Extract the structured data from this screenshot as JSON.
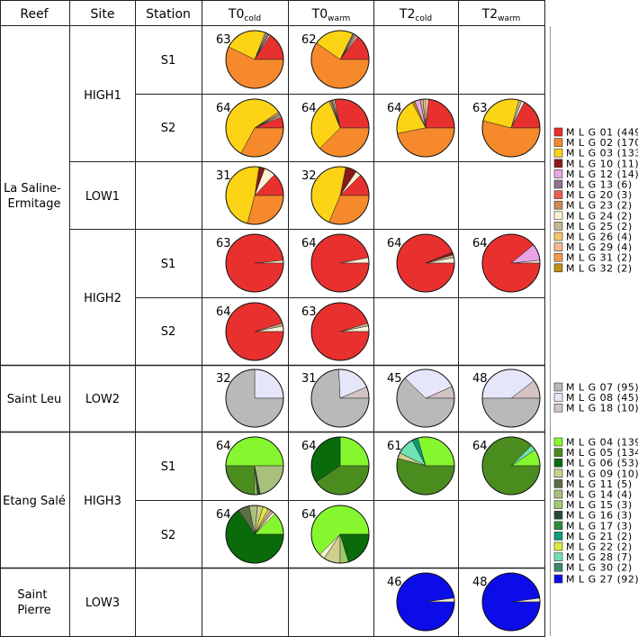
{
  "headers": {
    "reef": "Reef",
    "site": "Site",
    "station": "Station",
    "t0_cold_main": "T0",
    "t0_cold_sub": "cold",
    "t0_warm_main": "T0",
    "t0_warm_sub": "warm",
    "t2_cold_main": "T2",
    "t2_cold_sub": "cold",
    "t2_warm_main": "T2",
    "t2_warm_sub": "warm"
  },
  "reefs": [
    {
      "line1": "La Saline-",
      "line2": "Ermitage"
    },
    {
      "line1": "Saint Leu",
      "line2": ""
    },
    {
      "line1": "Etang Salé",
      "line2": ""
    },
    {
      "line1": "Saint",
      "line2": "Pierre"
    }
  ],
  "sites": [
    "HIGH1",
    "LOW1",
    "HIGH2",
    "LOW2",
    "HIGH3",
    "LOW3"
  ],
  "stations": [
    "S1",
    "S2",
    "S1",
    "S2",
    "S1",
    "S2"
  ],
  "colors": {
    "MLG01": "#e8312e",
    "MLG02": "#f5892c",
    "MLG03": "#fdd415",
    "MLG10": "#8b1a1a",
    "MLG12": "#e7a3e3",
    "MLG13": "#8e7494",
    "MLG20": "#ef5c4f",
    "MLG23": "#cf8a56",
    "MLG24": "#fbf2d4",
    "MLG25": "#c7b597",
    "MLG26": "#f7c46b",
    "MLG29": "#f4b990",
    "MLG31": "#f39a4c",
    "MLG32": "#be8d16",
    "MLG07": "#b9b9b9",
    "MLG08": "#e6e6fa",
    "MLG18": "#d3c3c3",
    "MLG04": "#86f72e",
    "MLG05": "#4b8c1e",
    "MLG06": "#0a6b0a",
    "MLG09": "#cfcf8c",
    "MLG11": "#5c6e46",
    "MLG14": "#a9bf7c",
    "MLG15": "#9ecb6a",
    "MLG16": "#274a36",
    "MLG17": "#2e8b3c",
    "MLG21": "#0c9a7a",
    "MLG22": "#dde93a",
    "MLG28": "#6ee3b4",
    "MLG30": "#3a8a6a",
    "MLG27": "#0c0ce8"
  },
  "legends": [
    {
      "items": [
        {
          "id": "MLG01",
          "label": "M L G 01 (449)"
        },
        {
          "id": "MLG02",
          "label": "M L G 02 (170)"
        },
        {
          "id": "MLG03",
          "label": "M L G 03 (133)"
        },
        {
          "id": "MLG10",
          "label": "M L G 10 (11)"
        },
        {
          "id": "MLG12",
          "label": "M L G 12 (14)"
        },
        {
          "id": "MLG13",
          "label": "M L G 13 (6)"
        },
        {
          "id": "MLG20",
          "label": "M L G 20 (3)"
        },
        {
          "id": "MLG23",
          "label": "M L G 23 (2)"
        },
        {
          "id": "MLG24",
          "label": "M L G 24 (2)"
        },
        {
          "id": "MLG25",
          "label": "M L G 25 (2)"
        },
        {
          "id": "MLG26",
          "label": "M L G 26 (4)"
        },
        {
          "id": "MLG29",
          "label": "M L G 29 (4)"
        },
        {
          "id": "MLG31",
          "label": "M L G 31 (2)"
        },
        {
          "id": "MLG32",
          "label": "M L G 32 (2)"
        }
      ]
    },
    {
      "items": [
        {
          "id": "MLG07",
          "label": "M L G 07 (95)"
        },
        {
          "id": "MLG08",
          "label": "M L G 08 (45)"
        },
        {
          "id": "MLG18",
          "label": "M L G 18 (10)"
        }
      ]
    },
    {
      "items": [
        {
          "id": "MLG04",
          "label": "M L G 04 (139)"
        },
        {
          "id": "MLG05",
          "label": "M L G 05 (134)"
        },
        {
          "id": "MLG06",
          "label": "M L G 06 (53)"
        },
        {
          "id": "MLG09",
          "label": "M L G 09 (10)"
        },
        {
          "id": "MLG11",
          "label": "M L G 11 (5)"
        },
        {
          "id": "MLG14",
          "label": "M L G 14 (4)"
        },
        {
          "id": "MLG15",
          "label": "M L G 15 (3)"
        },
        {
          "id": "MLG16",
          "label": "M L G 16 (3)"
        },
        {
          "id": "MLG17",
          "label": "M L G 17 (3)"
        },
        {
          "id": "MLG21",
          "label": "M L G 21 (2)"
        },
        {
          "id": "MLG22",
          "label": "M L G 22 (2)"
        },
        {
          "id": "MLG28",
          "label": "M L G 28 (7)"
        },
        {
          "id": "MLG30",
          "label": "M L G 30 (2)"
        }
      ]
    },
    {
      "items": [
        {
          "id": "MLG27",
          "label": "M L G 27 (92)"
        }
      ]
    }
  ],
  "pies": [
    {
      "row": 0,
      "col": 0,
      "n": "63",
      "slices": [
        [
          "MLG01",
          10
        ],
        [
          "MLG24",
          0.5
        ],
        [
          "MLG13",
          0.5
        ],
        [
          "MLG29",
          0.5
        ],
        [
          "MLG25",
          0.5
        ],
        [
          "MLG03",
          15
        ],
        [
          "MLG02",
          36
        ]
      ]
    },
    {
      "row": 0,
      "col": 1,
      "n": "62",
      "slices": [
        [
          "MLG01",
          9
        ],
        [
          "MLG24",
          0.5
        ],
        [
          "MLG29",
          0.5
        ],
        [
          "MLG25",
          0.5
        ],
        [
          "MLG13",
          0.5
        ],
        [
          "MLG03",
          14
        ],
        [
          "MLG02",
          37
        ]
      ]
    },
    {
      "row": 1,
      "col": 0,
      "n": "64",
      "slices": [
        [
          "MLG01",
          4
        ],
        [
          "MLG24",
          0.5
        ],
        [
          "MLG25",
          0.5
        ],
        [
          "MLG29",
          0.5
        ],
        [
          "MLG26",
          0.5
        ],
        [
          "MLG03",
          37
        ],
        [
          "MLG02",
          21
        ]
      ]
    },
    {
      "row": 1,
      "col": 1,
      "n": "64",
      "slices": [
        [
          "MLG01",
          18
        ],
        [
          "MLG24",
          0.5
        ],
        [
          "MLG25",
          0.5
        ],
        [
          "MLG13",
          0.5
        ],
        [
          "MLG29",
          0.5
        ],
        [
          "MLG03",
          20
        ],
        [
          "MLG02",
          24
        ]
      ]
    },
    {
      "row": 1,
      "col": 2,
      "n": "64",
      "slices": [
        [
          "MLG01",
          15
        ],
        [
          "MLG24",
          1
        ],
        [
          "MLG26",
          1
        ],
        [
          "MLG25",
          1
        ],
        [
          "MLG12",
          2
        ],
        [
          "MLG32",
          1
        ],
        [
          "MLG03",
          13
        ],
        [
          "MLG02",
          30
        ]
      ]
    },
    {
      "row": 1,
      "col": 3,
      "n": "63",
      "slices": [
        [
          "MLG01",
          11
        ],
        [
          "MLG24",
          1
        ],
        [
          "MLG25",
          1
        ],
        [
          "MLG03",
          16
        ],
        [
          "MLG02",
          34
        ]
      ]
    },
    {
      "row": 2,
      "col": 0,
      "n": "31",
      "slices": [
        [
          "MLG01",
          4
        ],
        [
          "MLG24",
          2
        ],
        [
          "MLG10",
          1
        ],
        [
          "MLG03",
          15
        ],
        [
          "MLG02",
          9
        ]
      ]
    },
    {
      "row": 2,
      "col": 1,
      "n": "32",
      "slices": [
        [
          "MLG01",
          4
        ],
        [
          "MLG24",
          1
        ],
        [
          "MLG10",
          2
        ],
        [
          "MLG03",
          15
        ],
        [
          "MLG02",
          10
        ]
      ]
    },
    {
      "row": 3,
      "col": 0,
      "n": "63",
      "slices": [
        [
          "MLG24",
          1
        ],
        [
          "MLG01",
          62
        ]
      ]
    },
    {
      "row": 3,
      "col": 1,
      "n": "64",
      "slices": [
        [
          "MLG24",
          2
        ],
        [
          "MLG01",
          62
        ]
      ]
    },
    {
      "row": 3,
      "col": 2,
      "n": "64",
      "slices": [
        [
          "MLG24",
          2
        ],
        [
          "MLG25",
          1
        ],
        [
          "MLG10",
          1
        ],
        [
          "MLG01",
          60
        ]
      ]
    },
    {
      "row": 3,
      "col": 3,
      "n": "64",
      "slices": [
        [
          "MLG24",
          1
        ],
        [
          "MLG12",
          6
        ],
        [
          "MLG01",
          57
        ]
      ]
    },
    {
      "row": 4,
      "col": 0,
      "n": "64",
      "slices": [
        [
          "MLG24",
          2
        ],
        [
          "MLG25",
          1
        ],
        [
          "MLG01",
          61
        ]
      ]
    },
    {
      "row": 4,
      "col": 1,
      "n": "63",
      "slices": [
        [
          "MLG24",
          2
        ],
        [
          "MLG25",
          1
        ],
        [
          "MLG01",
          60
        ]
      ]
    },
    {
      "row": 5,
      "col": 0,
      "n": "32",
      "slices": [
        [
          "MLG08",
          8
        ],
        [
          "MLG07",
          24
        ]
      ]
    },
    {
      "row": 5,
      "col": 1,
      "n": "31",
      "slices": [
        [
          "MLG18",
          2
        ],
        [
          "MLG08",
          6
        ],
        [
          "MLG07",
          23
        ]
      ]
    },
    {
      "row": 5,
      "col": 2,
      "n": "45",
      "slices": [
        [
          "MLG18",
          3
        ],
        [
          "MLG08",
          14
        ],
        [
          "MLG07",
          28
        ]
      ]
    },
    {
      "row": 5,
      "col": 3,
      "n": "48",
      "slices": [
        [
          "MLG18",
          5
        ],
        [
          "MLG08",
          19
        ],
        [
          "MLG07",
          24
        ]
      ]
    },
    {
      "row": 6,
      "col": 0,
      "n": "64",
      "slices": [
        [
          "MLG04",
          32
        ],
        [
          "MLG05",
          16
        ],
        [
          "MLG15",
          1
        ],
        [
          "MLG16",
          1
        ],
        [
          "MLG14",
          14
        ]
      ]
    },
    {
      "row": 6,
      "col": 1,
      "n": "64",
      "slices": [
        [
          "MLG04",
          16
        ],
        [
          "MLG06",
          22
        ],
        [
          "MLG05",
          26
        ]
      ]
    },
    {
      "row": 6,
      "col": 2,
      "n": "61",
      "slices": [
        [
          "MLG04",
          18
        ],
        [
          "MLG21",
          2
        ],
        [
          "MLG28",
          6
        ],
        [
          "MLG09",
          2
        ],
        [
          "MLG05",
          33
        ]
      ]
    },
    {
      "row": 6,
      "col": 3,
      "n": "64",
      "slices": [
        [
          "MLG04",
          6
        ],
        [
          "MLG28",
          2
        ],
        [
          "MLG05",
          56
        ]
      ]
    },
    {
      "row": 7,
      "col": 0,
      "n": "64",
      "slices": [
        [
          "MLG04",
          8
        ],
        [
          "MLG24",
          1
        ],
        [
          "MLG25",
          1
        ],
        [
          "MLG29",
          1
        ],
        [
          "MLG22",
          2
        ],
        [
          "MLG09",
          2
        ],
        [
          "MLG14",
          3
        ],
        [
          "MLG11",
          4
        ],
        [
          "MLG06",
          42
        ]
      ]
    },
    {
      "row": 7,
      "col": 1,
      "n": "64",
      "slices": [
        [
          "MLG04",
          40
        ],
        [
          "MLG24",
          2
        ],
        [
          "MLG09",
          6
        ],
        [
          "MLG15",
          3
        ],
        [
          "MLG06",
          13
        ]
      ]
    },
    {
      "row": 8,
      "col": 2,
      "n": "46",
      "slices": [
        [
          "MLG24",
          1
        ],
        [
          "MLG27",
          45
        ]
      ]
    },
    {
      "row": 8,
      "col": 3,
      "n": "48",
      "slices": [
        [
          "MLG24",
          1
        ],
        [
          "MLG27",
          47
        ]
      ]
    }
  ]
}
